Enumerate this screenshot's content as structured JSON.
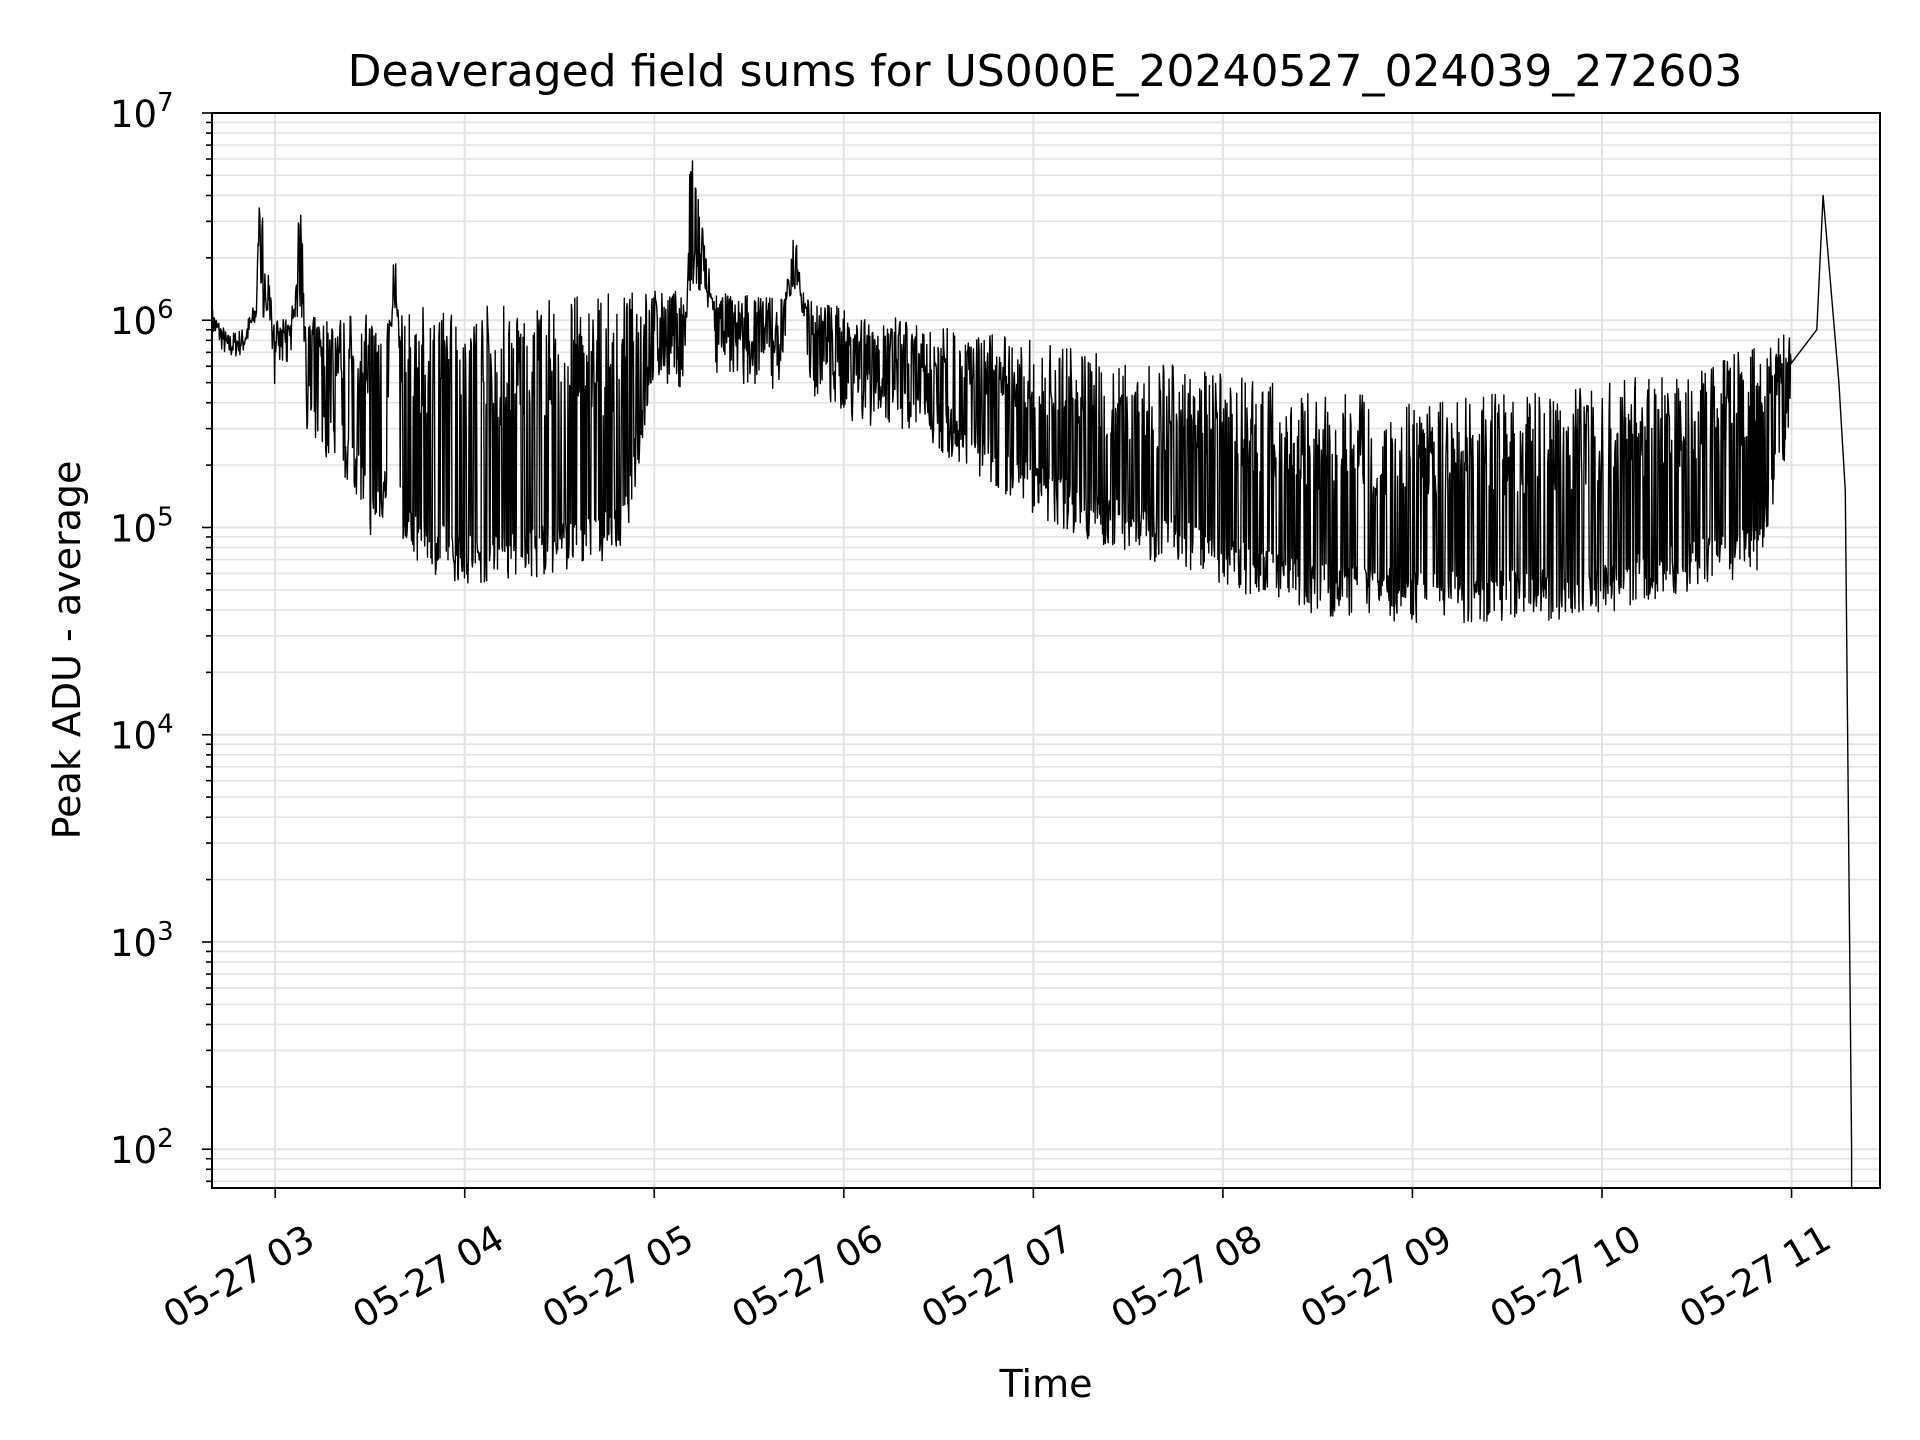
{
  "chart_data": {
    "type": "line",
    "title": "Deaveraged field sums for US000E_20240527_024039_272603",
    "xlabel": "Time",
    "ylabel": "Peak ADU - average",
    "yscale": "log",
    "ylim": [
      65,
      10000000
    ],
    "xlim": [
      "05-27 02:40",
      "05-27 11:28"
    ],
    "grid": true,
    "line_color": "#000000",
    "x_tick_labels": [
      "05-27 03",
      "05-27 04",
      "05-27 05",
      "05-27 06",
      "05-27 07",
      "05-27 08",
      "05-27 09",
      "05-27 10",
      "05-27 11"
    ],
    "y_ticks": [
      {
        "base": "10",
        "exp": "2",
        "value": 100
      },
      {
        "base": "10",
        "exp": "3",
        "value": 1000
      },
      {
        "base": "10",
        "exp": "4",
        "value": 10000
      },
      {
        "base": "10",
        "exp": "5",
        "value": 100000
      },
      {
        "base": "10",
        "exp": "6",
        "value": 1000000
      },
      {
        "base": "10",
        "exp": "7",
        "value": 10000000
      }
    ],
    "series": [
      {
        "values_note_free": true,
        "x": [
          "02:40",
          "02:45",
          "02:50",
          "02:54",
          "02:55",
          "03:00",
          "03:05",
          "03:08",
          "03:10",
          "03:15",
          "03:20",
          "03:25",
          "03:30",
          "03:35",
          "03:38",
          "03:40",
          "03:45",
          "03:50",
          "03:55",
          "04:00",
          "04:10",
          "04:20",
          "04:30",
          "04:40",
          "04:50",
          "05:00",
          "05:10",
          "05:11",
          "05:20",
          "05:30",
          "05:40",
          "05:44",
          "05:50",
          "06:00",
          "06:10",
          "06:20",
          "06:30",
          "06:40",
          "06:50",
          "07:00",
          "07:10",
          "07:20",
          "07:30",
          "07:40",
          "07:50",
          "08:00",
          "08:10",
          "08:20",
          "08:30",
          "08:40",
          "08:50",
          "09:00",
          "09:10",
          "09:20",
          "09:30",
          "09:40",
          "09:50",
          "10:00",
          "10:10",
          "10:20",
          "10:30",
          "10:40",
          "10:50",
          "11:00",
          "11:08",
          "11:10",
          "11:15",
          "11:17",
          "11:19"
        ],
        "y": [
          1000000,
          750000,
          800000,
          1100000,
          3400000,
          600000,
          800000,
          3500000,
          400000,
          300000,
          250000,
          200000,
          120000,
          150000,
          3100000,
          100000,
          90000,
          80000,
          75000,
          70000,
          72000,
          75000,
          80000,
          85000,
          95000,
          700000,
          600000,
          6100000,
          700000,
          650000,
          600000,
          3100000,
          550000,
          450000,
          400000,
          350000,
          300000,
          250000,
          200000,
          150000,
          130000,
          110000,
          100000,
          90000,
          80000,
          70000,
          60000,
          55000,
          50000,
          48000,
          47000,
          46000,
          46000,
          45000,
          46000,
          47000,
          48000,
          50000,
          55000,
          60000,
          65000,
          70000,
          80000,
          400000,
          900000,
          4000000,
          500000,
          150000,
          100
        ]
      }
    ]
  }
}
